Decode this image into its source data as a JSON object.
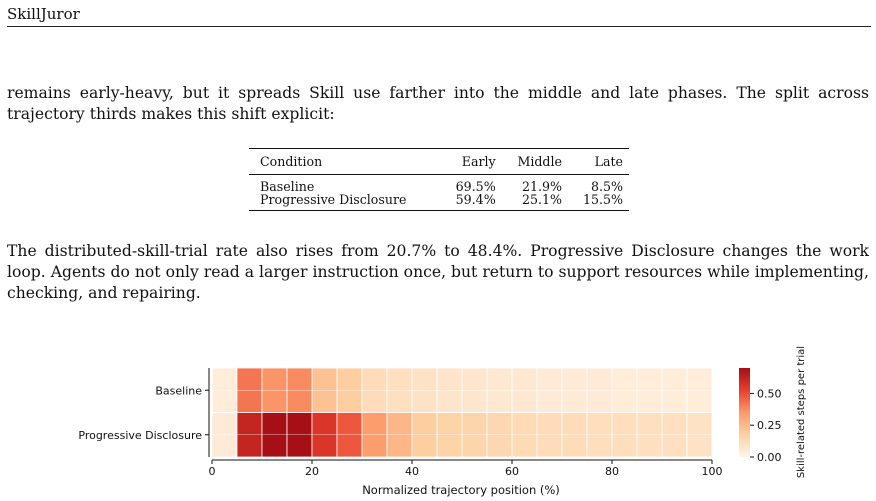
{
  "header": {
    "title": "SkillJuror"
  },
  "paragraphs": {
    "p1": "remains early-heavy, but it spreads Skill use farther into the middle and late phases. The split across trajectory thirds makes this shift explicit:",
    "p2": "The distributed-skill-trial rate also rises from 20.7% to 48.4%. Progressive Disclosure changes the work loop. Agents do not only read a larger instruction once, but return to support resources while implementing, checking, and repairing."
  },
  "table": {
    "headers": [
      "Condition",
      "Early",
      "Middle",
      "Late"
    ],
    "rows": [
      [
        "Baseline",
        "69.5%",
        "21.9%",
        "8.5%"
      ],
      [
        "Progressive Disclosure",
        "59.4%",
        "25.1%",
        "15.5%"
      ]
    ]
  },
  "chart_data": {
    "type": "heatmap",
    "title": "",
    "xlabel": "Normalized trajectory position (%)",
    "ylabel": "",
    "xlim": [
      0,
      100
    ],
    "x_ticks": [
      "0",
      "20",
      "40",
      "60",
      "80",
      "100"
    ],
    "bin_width": 5,
    "rows": [
      "Baseline",
      "Progressive Disclosure"
    ],
    "values": [
      [
        0.04,
        0.42,
        0.36,
        0.38,
        0.22,
        0.18,
        0.12,
        0.1,
        0.09,
        0.08,
        0.07,
        0.06,
        0.06,
        0.05,
        0.05,
        0.05,
        0.04,
        0.04,
        0.04,
        0.04
      ],
      [
        0.05,
        0.62,
        0.72,
        0.74,
        0.56,
        0.48,
        0.34,
        0.26,
        0.18,
        0.16,
        0.15,
        0.14,
        0.13,
        0.12,
        0.12,
        0.11,
        0.11,
        0.1,
        0.1,
        0.09
      ]
    ],
    "colorbar": {
      "label": "Skill-related steps per trial",
      "range": [
        0,
        0.7
      ],
      "ticks": [
        0.0,
        0.25,
        0.5
      ],
      "tick_labels": [
        "0.00",
        "0.25",
        "0.50"
      ]
    },
    "colors": {
      "low": "#fff5eb",
      "mid": "#fc9a6a",
      "high": "#a50f15"
    }
  }
}
